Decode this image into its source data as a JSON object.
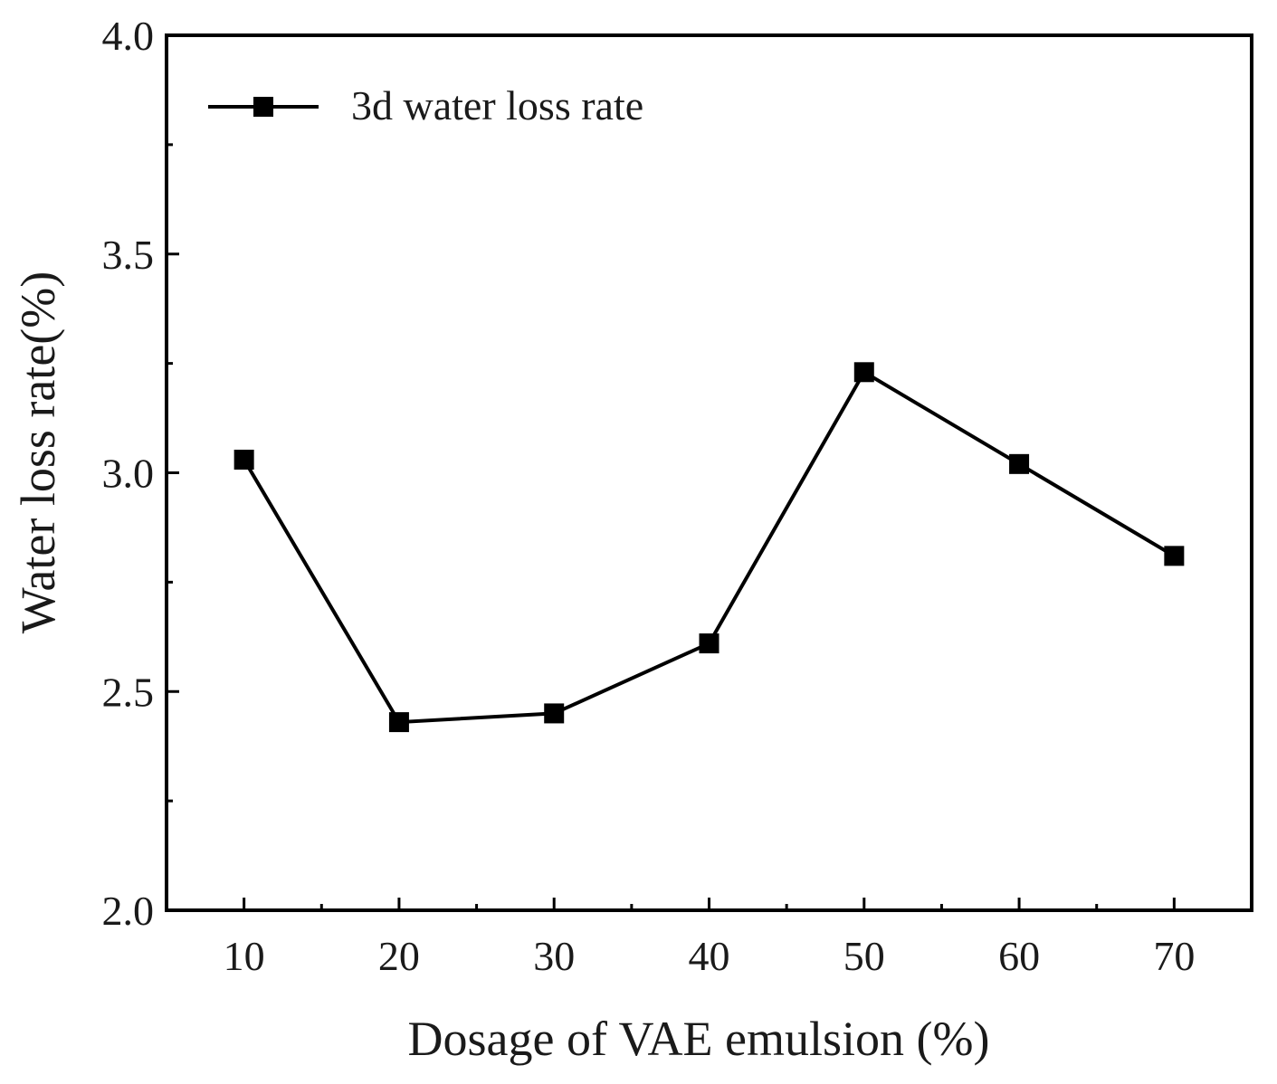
{
  "chart_data": {
    "type": "line",
    "title": "",
    "xlabel": "Dosage of VAE emulsion (%)",
    "ylabel": "Water loss rate(%)",
    "x": [
      10,
      20,
      30,
      40,
      50,
      60,
      70
    ],
    "x_tick_labels": [
      "10",
      "20",
      "30",
      "40",
      "50",
      "60",
      "70"
    ],
    "xlim": [
      5,
      75
    ],
    "ylim": [
      2.0,
      4.0
    ],
    "y_ticks": [
      2.0,
      2.5,
      3.0,
      3.5,
      4.0
    ],
    "y_tick_labels": [
      "2.0",
      "2.5",
      "3.0",
      "3.5",
      "4.0"
    ],
    "grid": false,
    "legend_position": "top-left",
    "series": [
      {
        "name": "3d water loss rate",
        "marker": "square",
        "color": "#000000",
        "values": [
          3.03,
          2.43,
          2.45,
          2.61,
          3.23,
          3.02,
          2.81
        ]
      }
    ]
  }
}
